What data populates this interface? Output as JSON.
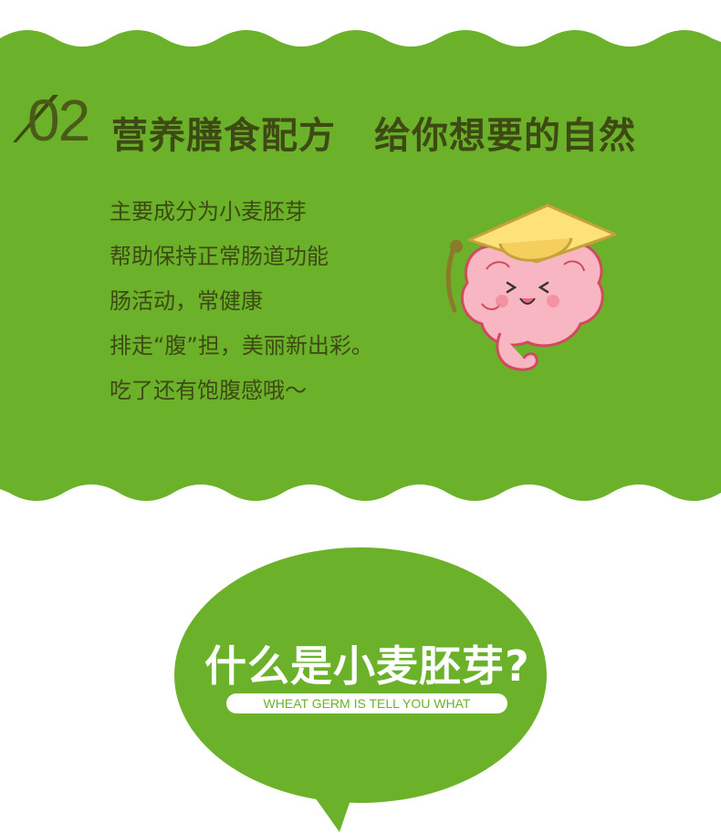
{
  "section": {
    "number": "02",
    "title_part1": "营养膳食配方",
    "title_part2": "给你想要的自然"
  },
  "description_lines": [
    "主要成分为小麦胚芽",
    "帮助保持正常肠道功能",
    "肠活动，常健康",
    "排走“腹”担，美丽新出彩。",
    "吃了还有饱腹感哦～"
  ],
  "question": {
    "title": "什么是小麦胚芽?",
    "subtitle": "WHEAT GERM IS TELL YOU WHAT"
  },
  "colors": {
    "green": "#6bb12a",
    "dark_text": "#3d4a13",
    "white": "#ffffff",
    "mascot_pink": "#f7b6c2",
    "hat_yellow": "#fde27a"
  },
  "icons": [
    "graduation-cap-icon",
    "intestine-mascot-icon"
  ]
}
